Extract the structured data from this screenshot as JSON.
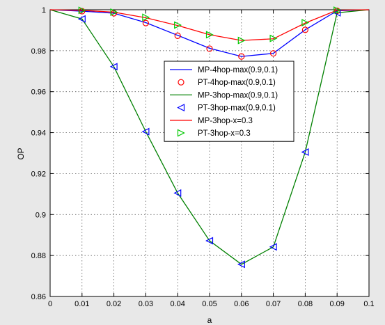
{
  "chart_data": {
    "type": "line",
    "title": "",
    "xlabel": "a",
    "ylabel": "OP",
    "xlim": [
      0,
      0.1
    ],
    "ylim": [
      0.86,
      1.0
    ],
    "grid": true,
    "legend_position": "right",
    "x_ticks": [
      "0",
      "0.01",
      "0.02",
      "0.03",
      "0.04",
      "0.05",
      "0.06",
      "0.07",
      "0.08",
      "0.09",
      "0.1"
    ],
    "y_ticks": [
      "0.86",
      "0.88",
      "0.9",
      "0.92",
      "0.94",
      "0.96",
      "0.98",
      "1"
    ],
    "series": [
      {
        "name": "MP-4hop-max(0.9,0.1)",
        "kind": "line",
        "color": "#0000ff",
        "x": [
          0,
          0.01,
          0.02,
          0.03,
          0.04,
          0.05,
          0.06,
          0.07,
          0.08,
          0.09,
          0.1
        ],
        "y": [
          1.0,
          0.9993,
          0.9983,
          0.9937,
          0.9875,
          0.9812,
          0.9772,
          0.9787,
          0.9902,
          0.9995,
          1.0
        ]
      },
      {
        "name": "PT-4hop-max(0.9,0.1)",
        "kind": "marker",
        "marker": "circle",
        "color": "#ff0000",
        "x": [
          0.01,
          0.02,
          0.03,
          0.04,
          0.05,
          0.06,
          0.07,
          0.08,
          0.09
        ],
        "y": [
          0.9993,
          0.9983,
          0.9935,
          0.9873,
          0.981,
          0.9772,
          0.9787,
          0.9902,
          0.9995
        ]
      },
      {
        "name": "MP-3hop-max(0.9,0.1)",
        "kind": "line",
        "color": "#008000",
        "x": [
          0,
          0.01,
          0.02,
          0.03,
          0.04,
          0.05,
          0.06,
          0.07,
          0.08,
          0.09,
          0.1
        ],
        "y": [
          1.0,
          0.9955,
          0.9722,
          0.9405,
          0.9105,
          0.8872,
          0.8757,
          0.8842,
          0.9305,
          0.9985,
          1.0
        ]
      },
      {
        "name": "PT-3hop-max(0.9,0.1)",
        "kind": "marker",
        "marker": "triangle-left",
        "color": "#0000ff",
        "x": [
          0.01,
          0.02,
          0.03,
          0.04,
          0.05,
          0.06,
          0.07,
          0.08,
          0.09
        ],
        "y": [
          0.9955,
          0.9722,
          0.9405,
          0.9105,
          0.8872,
          0.8757,
          0.8842,
          0.9305,
          0.9985
        ]
      },
      {
        "name": "MP-3hop-x=0.3",
        "kind": "line",
        "color": "#ff0000",
        "x": [
          0,
          0.01,
          0.02,
          0.03,
          0.04,
          0.05,
          0.06,
          0.07,
          0.08,
          0.09,
          0.1
        ],
        "y": [
          1.0,
          0.9997,
          0.9988,
          0.9961,
          0.9923,
          0.9878,
          0.985,
          0.9858,
          0.9935,
          0.9998,
          1.0
        ]
      },
      {
        "name": "PT-3hop-x=0.3",
        "kind": "marker",
        "marker": "triangle-right",
        "color": "#00c800",
        "x": [
          0.01,
          0.02,
          0.03,
          0.04,
          0.05,
          0.06,
          0.07,
          0.08,
          0.09
        ],
        "y": [
          0.9997,
          0.9988,
          0.9963,
          0.9925,
          0.9878,
          0.985,
          0.986,
          0.9937,
          0.9998
        ]
      }
    ]
  }
}
